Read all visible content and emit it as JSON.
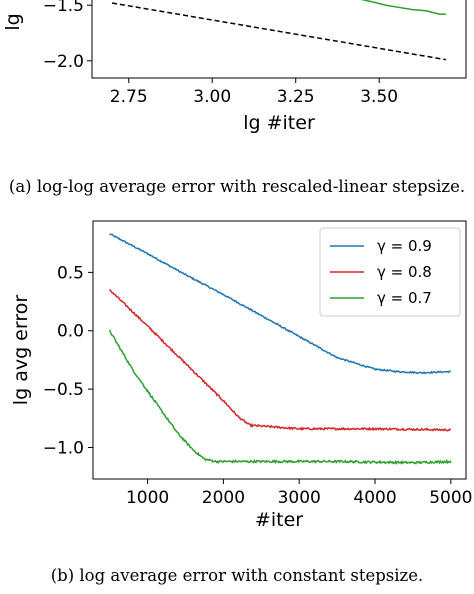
{
  "captions": {
    "a": "(a) log-log average error with rescaled-linear stepsize.",
    "b": "(b) log average error with constant stepsize."
  },
  "colors": {
    "blue": "#1f77b4",
    "red": "#d62728",
    "green": "#2ca02c",
    "black": "#000000"
  },
  "chart_data": [
    {
      "type": "line",
      "title": "",
      "xlabel": "lg #iter",
      "ylabel": "lg",
      "xlim": [
        2.64,
        3.76
      ],
      "ylim": [
        -2.15,
        -1.33
      ],
      "xticks": [
        2.75,
        3.0,
        3.25,
        3.5
      ],
      "xtick_labels": [
        "2.75",
        "3.00",
        "3.25",
        "3.50"
      ],
      "yticks": [
        -1.5,
        -2.0
      ],
      "ytick_labels": [
        "−1.5",
        "−2.0"
      ],
      "grid": false,
      "cropped_top": true,
      "series": [
        {
          "style": "dashed",
          "color": "black",
          "x": [
            2.7,
            3.7
          ],
          "y": [
            -1.48,
            -1.99
          ]
        },
        {
          "style": "solid",
          "color": "green",
          "x": [
            3.4,
            3.42,
            3.45,
            3.48,
            3.52,
            3.56,
            3.6,
            3.64,
            3.68,
            3.7
          ],
          "y": [
            -1.37,
            -1.38,
            -1.45,
            -1.47,
            -1.5,
            -1.52,
            -1.54,
            -1.55,
            -1.58,
            -1.58
          ]
        }
      ]
    },
    {
      "type": "line",
      "title": "",
      "xlabel": "#iter",
      "ylabel": "lg avg error",
      "xlim": [
        280,
        5200
      ],
      "ylim": [
        -1.27,
        0.94
      ],
      "xticks": [
        1000,
        2000,
        3000,
        4000,
        5000
      ],
      "xtick_labels": [
        "1000",
        "2000",
        "3000",
        "4000",
        "5000"
      ],
      "yticks": [
        0.5,
        0.0,
        -0.5,
        -1.0
      ],
      "ytick_labels": [
        "0.5",
        "0.0",
        "−0.5",
        "−1.0"
      ],
      "grid": false,
      "legend_position": "top-right",
      "series": [
        {
          "name": "γ = 0.9",
          "color": "blue",
          "noise": 0.006,
          "x": [
            500,
            1000,
            1500,
            2000,
            2500,
            3000,
            3500,
            3700,
            4000,
            4300,
            4600,
            5000
          ],
          "y": [
            0.83,
            0.66,
            0.48,
            0.31,
            0.13,
            -0.05,
            -0.23,
            -0.27,
            -0.33,
            -0.35,
            -0.36,
            -0.35
          ]
        },
        {
          "name": "γ = 0.8",
          "color": "red",
          "noise": 0.008,
          "x": [
            500,
            1000,
            1500,
            2000,
            2200,
            2350,
            3000,
            4000,
            5000
          ],
          "y": [
            0.35,
            0.04,
            -0.28,
            -0.6,
            -0.74,
            -0.81,
            -0.84,
            -0.84,
            -0.85
          ]
        },
        {
          "name": "γ = 0.7",
          "color": "green",
          "noise": 0.009,
          "x": [
            500,
            800,
            1100,
            1400,
            1600,
            1750,
            1900,
            2500,
            3500,
            4500,
            5000
          ],
          "y": [
            0.0,
            -0.33,
            -0.61,
            -0.88,
            -1.02,
            -1.1,
            -1.12,
            -1.12,
            -1.12,
            -1.13,
            -1.12
          ]
        }
      ]
    }
  ]
}
